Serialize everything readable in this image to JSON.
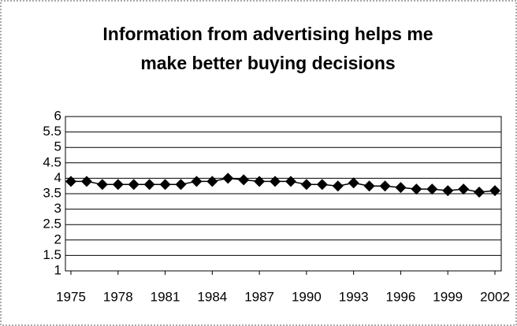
{
  "chart_data": {
    "type": "line",
    "title": [
      "Information from advertising helps me",
      "make better buying decisions"
    ],
    "x": [
      1975,
      1976,
      1977,
      1978,
      1979,
      1980,
      1981,
      1982,
      1983,
      1984,
      1985,
      1986,
      1987,
      1988,
      1989,
      1990,
      1991,
      1992,
      1993,
      1994,
      1995,
      1996,
      1997,
      1998,
      1999,
      2000,
      2001,
      2002
    ],
    "series": [
      {
        "color": "#000000",
        "values": [
          3.9,
          3.9,
          3.8,
          3.8,
          3.8,
          3.8,
          3.8,
          3.8,
          3.9,
          3.9,
          4.0,
          3.95,
          3.9,
          3.9,
          3.9,
          3.8,
          3.8,
          3.75,
          3.85,
          3.75,
          3.75,
          3.7,
          3.65,
          3.65,
          3.6,
          3.65,
          3.55,
          3.6
        ]
      }
    ],
    "xlim": [
      1975,
      2002
    ],
    "xticks": [
      1975,
      1978,
      1981,
      1984,
      1987,
      1990,
      1993,
      1996,
      1999,
      2002
    ],
    "ylim": [
      1,
      6
    ],
    "yticks": [
      1,
      1.5,
      2,
      2.5,
      3,
      3.5,
      4,
      4.5,
      5,
      5.5,
      6
    ],
    "grid": true,
    "marker": "diamond"
  }
}
